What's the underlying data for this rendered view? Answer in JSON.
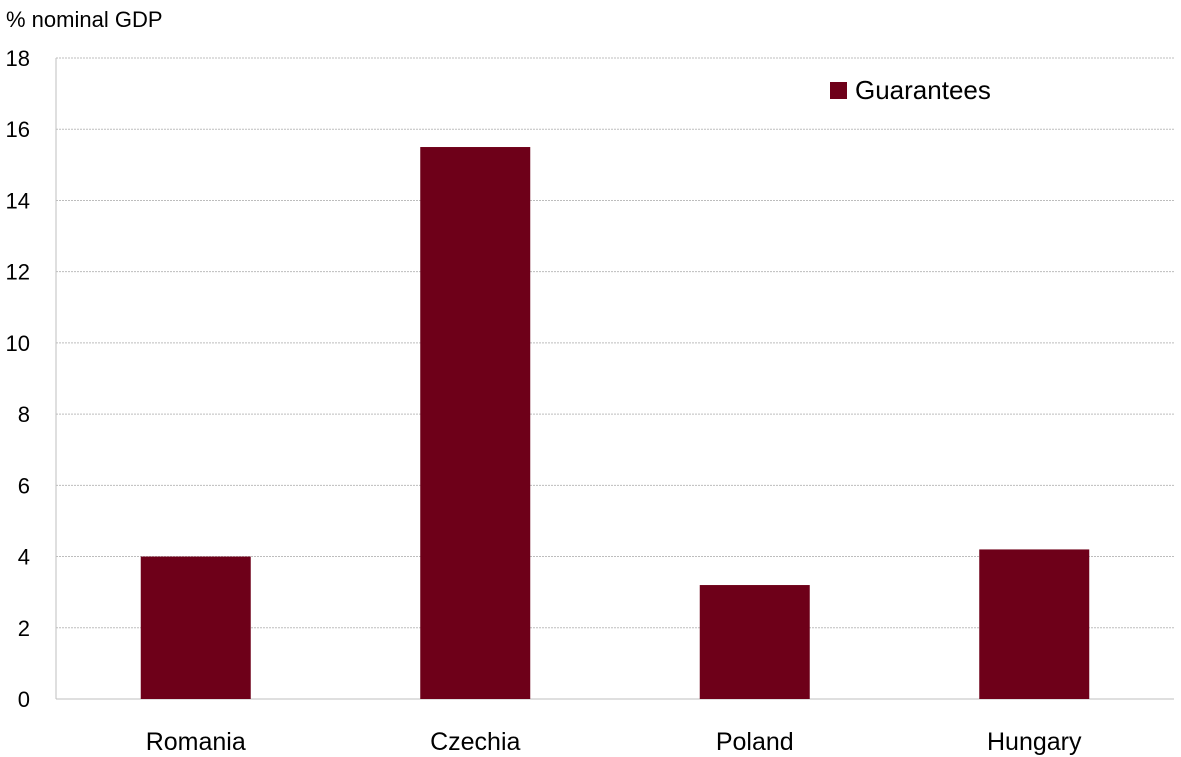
{
  "chart_data": {
    "type": "bar",
    "ylabel": "% nominal GDP",
    "xlabel": "",
    "categories": [
      "Romania",
      "Czechia",
      "Poland",
      "Hungary"
    ],
    "series": [
      {
        "name": "Guarantees",
        "values": [
          4.0,
          15.5,
          3.2,
          4.2
        ],
        "color": "#6e0019"
      }
    ],
    "ylim": [
      0,
      18
    ],
    "yticks": [
      0,
      2,
      4,
      6,
      8,
      10,
      12,
      14,
      16,
      18
    ],
    "grid": true,
    "legend_position": "top-right"
  }
}
